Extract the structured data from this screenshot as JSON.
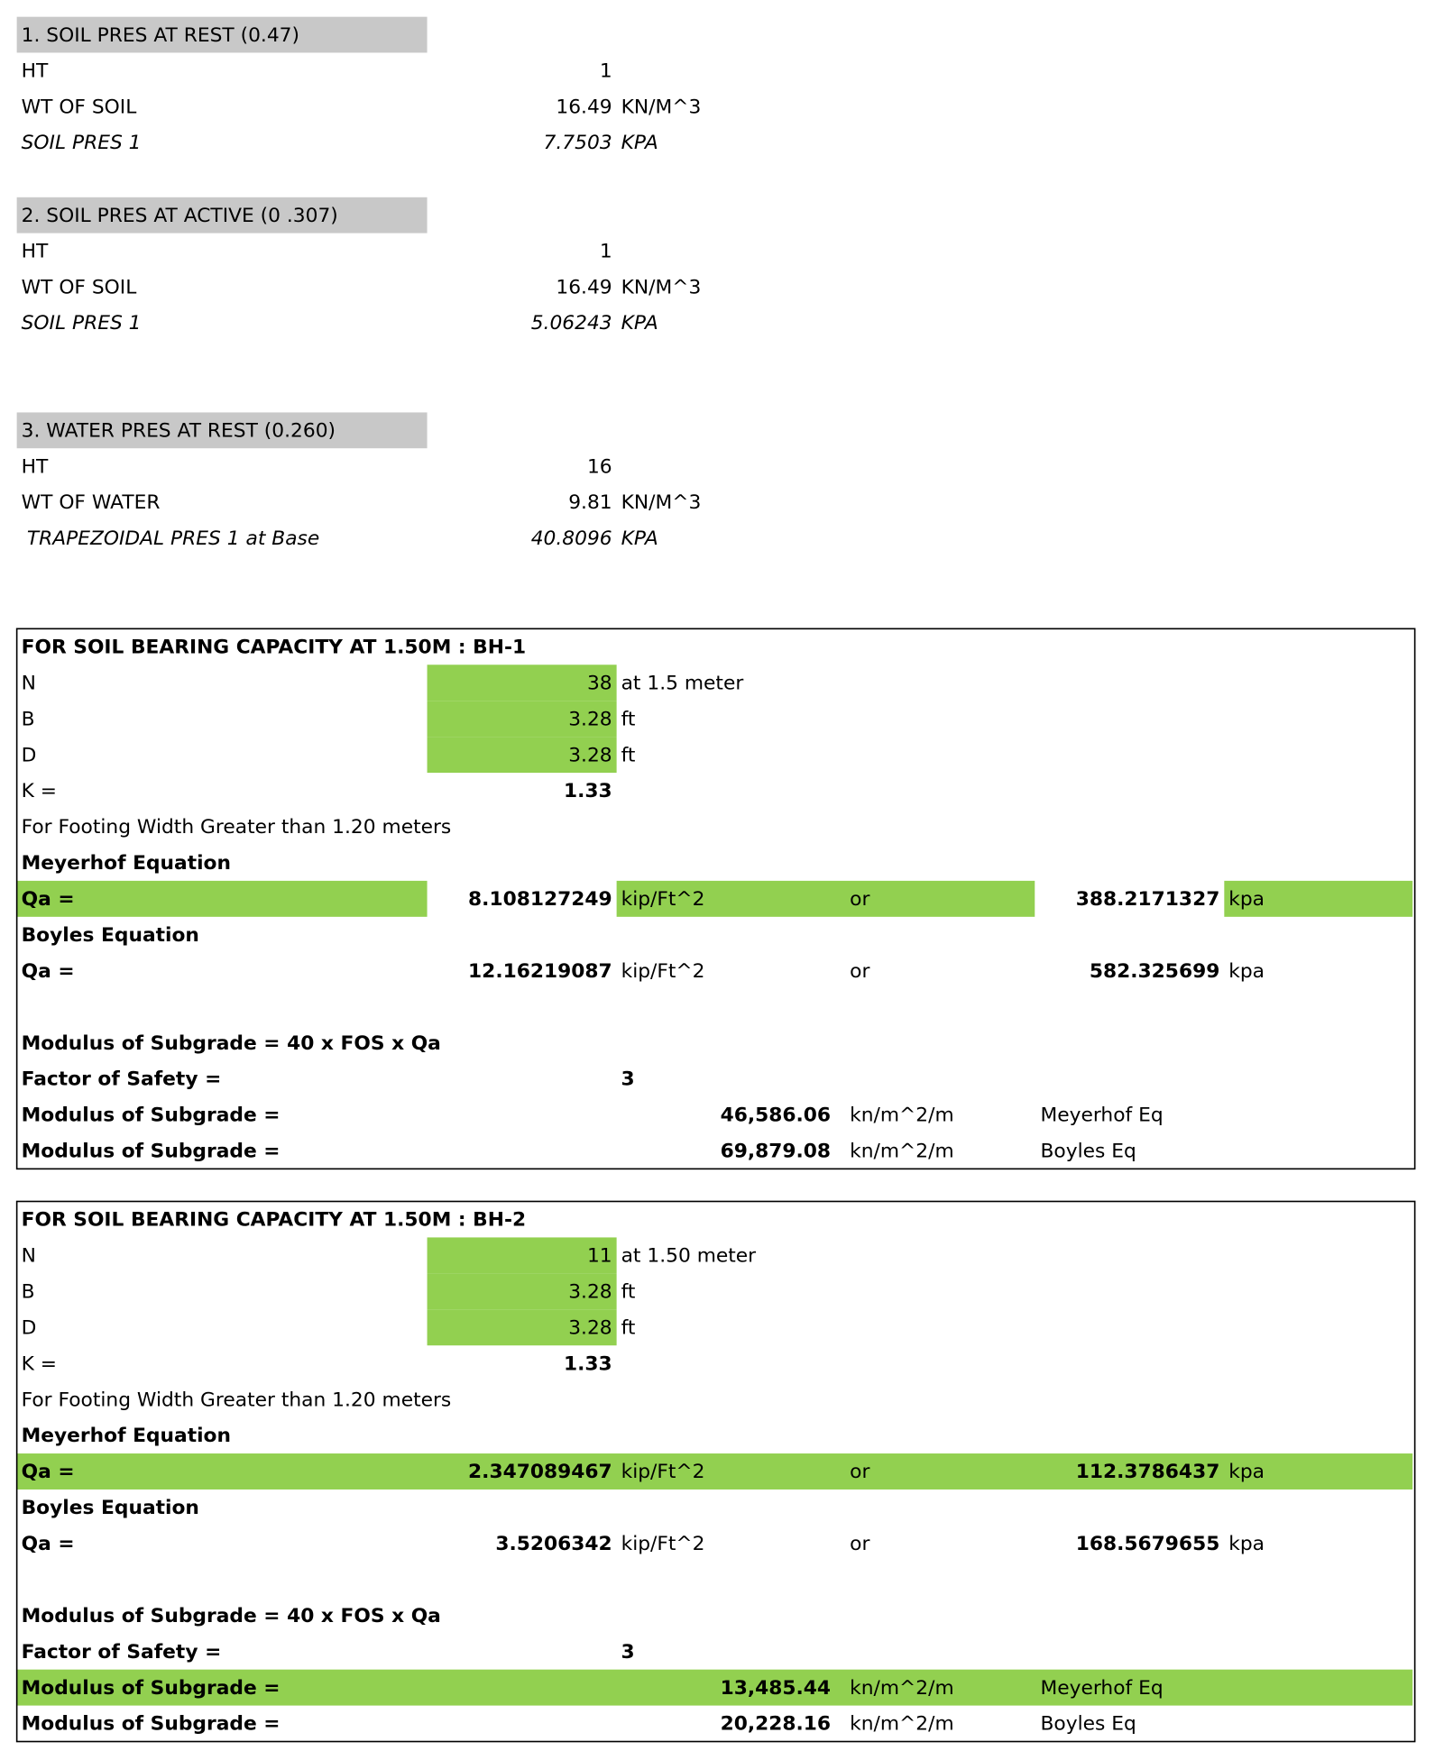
{
  "pressure_sections": [
    {
      "header": "1. SOIL PRES AT REST (0.47)",
      "rows": [
        {
          "label": "HT",
          "value": "1"
        },
        {
          "label": "WT OF SOIL",
          "value": "16.49",
          "unit": "KN/M^3"
        },
        {
          "label": "SOIL PRES 1",
          "value": "7.7503",
          "unit": "KPA"
        }
      ]
    },
    {
      "header": "2. SOIL PRES AT ACTIVE (0 .307)",
      "rows": [
        {
          "label": "HT",
          "value": "1"
        },
        {
          "label": "WT OF SOIL",
          "value": "16.49",
          "unit": "KN/M^3"
        },
        {
          "label": "SOIL PRES 1",
          "value": "5.06243",
          "unit": "KPA"
        }
      ]
    },
    {
      "header": "3. WATER PRES AT REST (0.260)",
      "rows": [
        {
          "label": "HT",
          "value": "16"
        },
        {
          "label": "WT OF WATER",
          "value": "9.81",
          "unit": "KN/M^3"
        },
        {
          "label": "TRAPEZOIDAL PRES 1 at Base",
          "value": "40.8096",
          "unit": "KPA"
        }
      ]
    }
  ],
  "bearing_sections": [
    {
      "title": "FOR SOIL BEARING CAPACITY  AT 1.50M : BH-1",
      "rows": [
        {
          "label": "N",
          "input": "38",
          "unit": "at 1.5 meter"
        },
        {
          "label": "B",
          "input": "3.28",
          "unit": "ft"
        },
        {
          "label": "D",
          "input": "3.28",
          "unit": "ft"
        },
        {
          "label": "K =",
          "value": "1.33"
        },
        {
          "label": "For Footing Width Greater than 1.20 meters"
        },
        {
          "label": "Meyerhof Equation"
        },
        {
          "label": "Qa =",
          "value": "8.108127249",
          "unit": "kip/Ft^2",
          "or": "or",
          "value2": "388.2171327",
          "unit2": "kpa"
        },
        {
          "label": "Boyles Equation"
        },
        {
          "label": "Qa =",
          "value": "12.16219087",
          "unit": "kip/Ft^2",
          "or": "or",
          "value2": "582.325699",
          "unit2": "kpa"
        },
        {
          "label": "Modulus of Subgrade = 40 x FOS x Qa"
        },
        {
          "label": "Factor of Safety  =",
          "fos": "3"
        },
        {
          "label": "Modulus of Subgrade =",
          "modulus": "46,586.06",
          "munit": "kn/m^2/m",
          "note": "Meyerhof Eq"
        },
        {
          "label": "Modulus of Subgrade =",
          "modulus": "69,879.08",
          "munit": "kn/m^2/m",
          "note": "Boyles Eq"
        }
      ]
    },
    {
      "title": "FOR SOIL BEARING CAPACITY AT 1.50M : BH-2",
      "rows": [
        {
          "label": "N",
          "input": "11",
          "unit": "at 1.50 meter"
        },
        {
          "label": "B",
          "input": "3.28",
          "unit": "ft"
        },
        {
          "label": "D",
          "input": "3.28",
          "unit": "ft"
        },
        {
          "label": "K =",
          "value": "1.33"
        },
        {
          "label": "For Footing Width Greater than 1.20 meters"
        },
        {
          "label": "Meyerhof Equation"
        },
        {
          "label": "Qa =",
          "value": "2.347089467",
          "unit": "kip/Ft^2",
          "or": "or",
          "value2": "112.3786437",
          "unit2": "kpa"
        },
        {
          "label": "Boyles Equation"
        },
        {
          "label": "Qa =",
          "value": "3.5206342",
          "unit": "kip/Ft^2",
          "or": "or",
          "value2": "168.5679655",
          "unit2": "kpa"
        },
        {
          "label": "Modulus of Subgrade = 40 x FOS x Qa"
        },
        {
          "label": "Factor of Safety  =",
          "fos": "3"
        },
        {
          "label": "Modulus of Subgrade =",
          "modulus": "13,485.44",
          "munit": "kn/m^2/m",
          "note": "Meyerhof Eq"
        },
        {
          "label": "Modulus of Subgrade =",
          "modulus": "20,228.16",
          "munit": "kn/m^2/m",
          "note": "Boyles Eq"
        }
      ]
    }
  ]
}
